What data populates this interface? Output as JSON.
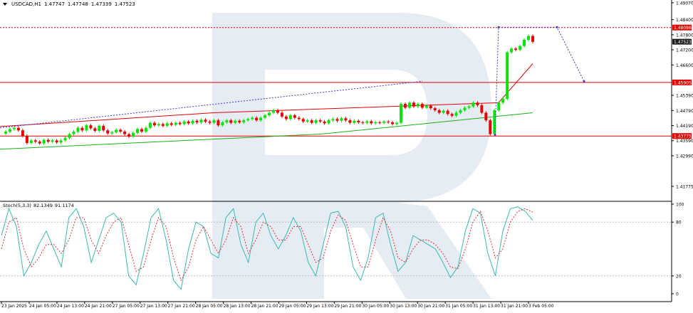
{
  "header": {
    "symbol": "USDCAD,H1",
    "open": "1.47747",
    "high": "1.47748",
    "low": "1.47339",
    "close": "1.47523"
  },
  "stoch_header": {
    "name": "Stoch(5,3,3)",
    "k": "82.1349",
    "d": "91.1174"
  },
  "colors": {
    "bull": "#00e600",
    "bear": "#e60000",
    "ma_red": "#e60000",
    "ma_green": "#18b018",
    "level_red": "#e60000",
    "forecast": "#3a3ad6",
    "stoch_main": "#3cb8b0",
    "stoch_signal": "#e03030",
    "watermark": "#cfdcea"
  },
  "chart_data": [
    {
      "type": "candlestick",
      "title": "USDCAD,H1",
      "ylim": [
        1.4118,
        1.4918
      ],
      "y_ticks": [
        "1.49070",
        "1.48400",
        "1.47800",
        "1.47200",
        "1.46600",
        "1.45390",
        "1.44790",
        "1.44190",
        "1.43590",
        "1.42990",
        "1.41775"
      ],
      "y_ticks_values": [
        1.4907,
        1.484,
        1.478,
        1.472,
        1.466,
        1.4539,
        1.4479,
        1.4419,
        1.4359,
        1.4299,
        1.41775
      ],
      "x_ticks": [
        "23 Jan 2025",
        "24 Jan 05:00",
        "24 Jan 13:00",
        "24 Jan 21:00",
        "27 Jan 05:00",
        "27 Jan 13:00",
        "27 Jan 21:00",
        "28 Jan 05:00",
        "28 Jan 13:00",
        "28 Jan 21:00",
        "29 Jan 05:00",
        "29 Jan 13:00",
        "29 Jan 21:00",
        "30 Jan 05:00",
        "30 Jan 13:00",
        "30 Jan 21:00",
        "31 Jan 05:00",
        "31 Jan 13:00",
        "31 Jan 21:00",
        "3 Feb 05:00"
      ],
      "price_labels": [
        {
          "value": 1.48086,
          "label": "1.48086",
          "style": "red"
        },
        {
          "value": 1.47523,
          "label": "1.47523",
          "style": "dark"
        },
        {
          "value": 1.45905,
          "label": "1.45905",
          "style": "red"
        },
        {
          "value": 1.43775,
          "label": "1.43775",
          "style": "red"
        }
      ],
      "levels": [
        1.48086,
        1.45905,
        1.43775
      ],
      "closes": [
        1.4395,
        1.4405,
        1.441,
        1.44,
        1.4378,
        1.435,
        1.436,
        1.4355,
        1.4348,
        1.4362,
        1.4355,
        1.436,
        1.4352,
        1.436,
        1.437,
        1.4385,
        1.4395,
        1.441,
        1.44,
        1.442,
        1.4408,
        1.4398,
        1.4418,
        1.44,
        1.4388,
        1.4392,
        1.4402,
        1.4395,
        1.4385,
        1.4375,
        1.439,
        1.4405,
        1.4395,
        1.441,
        1.443,
        1.442,
        1.4425,
        1.4418,
        1.4428,
        1.4422,
        1.443,
        1.4425,
        1.4435,
        1.4428,
        1.4438,
        1.4432,
        1.4442,
        1.4435,
        1.443,
        1.444,
        1.442,
        1.4432,
        1.444,
        1.443,
        1.4438,
        1.4432,
        1.444,
        1.4445,
        1.445,
        1.444,
        1.445,
        1.446,
        1.447,
        1.448,
        1.447,
        1.4455,
        1.4445,
        1.446,
        1.445,
        1.4445,
        1.4435,
        1.444,
        1.443,
        1.444,
        1.4435,
        1.4428,
        1.444,
        1.4445,
        1.4438,
        1.4448,
        1.444,
        1.443,
        1.4438,
        1.4432,
        1.443,
        1.4436,
        1.4428,
        1.4432,
        1.443,
        1.4435,
        1.4432,
        1.4425,
        1.443,
        1.4505,
        1.449,
        1.451,
        1.4495,
        1.4505,
        1.449,
        1.4498,
        1.4488,
        1.448,
        1.447,
        1.4478,
        1.4465,
        1.4458,
        1.447,
        1.448,
        1.449,
        1.4495,
        1.451,
        1.45,
        1.447,
        1.444,
        1.4385,
        1.448,
        1.451,
        1.4525,
        1.471,
        1.4725,
        1.472,
        1.4735,
        1.476,
        1.4775,
        1.4752
      ],
      "series": [
        {
          "name": "",
          "kind": "ma_red",
          "values": [
            1.4415,
            1.447,
            1.451,
            1.4665
          ]
        },
        {
          "name": "",
          "kind": "ma_green",
          "values": [
            1.4325,
            1.4385,
            1.447
          ]
        },
        {
          "name": "",
          "kind": "trendline",
          "values": [
            1.441,
            1.4595
          ]
        },
        {
          "name": "",
          "kind": "forecast",
          "values": [
            1.4382,
            1.481,
            1.481,
            1.4595
          ]
        }
      ]
    },
    {
      "type": "line",
      "title": "Stoch(5,3,3)",
      "ylim": [
        0,
        100
      ],
      "y_ticks": [
        "100",
        "80",
        "20",
        "0"
      ],
      "y_ticks_values": [
        100,
        80,
        20,
        0
      ],
      "series": [
        {
          "name": "",
          "kind": "main",
          "values": [
            65,
            95,
            75,
            20,
            35,
            55,
            70,
            50,
            30,
            85,
            95,
            75,
            35,
            60,
            85,
            90,
            80,
            20,
            10,
            45,
            85,
            95,
            60,
            15,
            5,
            50,
            80,
            75,
            45,
            40,
            85,
            95,
            55,
            35,
            80,
            90,
            65,
            50,
            65,
            85,
            70,
            35,
            20,
            55,
            90,
            92,
            75,
            30,
            15,
            40,
            85,
            90,
            55,
            25,
            35,
            65,
            60,
            55,
            50,
            35,
            18,
            30,
            70,
            95,
            90,
            45,
            20,
            70,
            95,
            97,
            92,
            82
          ]
        },
        {
          "name": "",
          "kind": "signal",
          "values": [
            50,
            80,
            85,
            50,
            30,
            40,
            55,
            55,
            45,
            60,
            85,
            85,
            60,
            45,
            65,
            80,
            85,
            55,
            25,
            30,
            60,
            85,
            75,
            40,
            15,
            30,
            60,
            75,
            60,
            45,
            60,
            85,
            75,
            45,
            60,
            80,
            75,
            60,
            60,
            75,
            75,
            55,
            35,
            40,
            70,
            88,
            82,
            55,
            30,
            30,
            60,
            85,
            70,
            40,
            35,
            50,
            60,
            60,
            55,
            45,
            30,
            28,
            50,
            80,
            92,
            70,
            40,
            50,
            80,
            92,
            95,
            91
          ]
        }
      ]
    }
  ]
}
